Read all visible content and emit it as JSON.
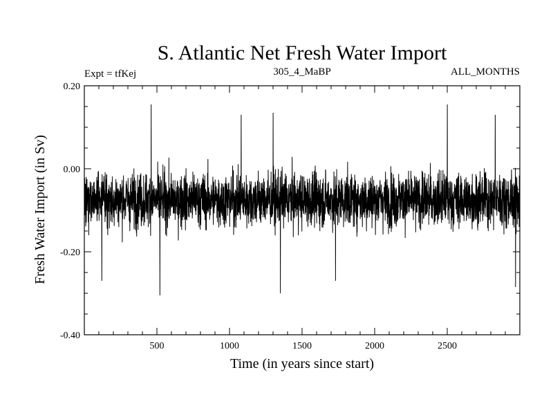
{
  "chart_data": {
    "type": "line",
    "title": "S. Atlantic Net Fresh Water Import",
    "subtitle_left": "Expt = tfKej",
    "subtitle_center": "305_4_MaBP",
    "subtitle_right": "ALL_MONTHS",
    "xlabel": "Time (in years since start)",
    "ylabel": "Fresh Water Import (in Sv)",
    "xlim": [
      0,
      3000
    ],
    "ylim": [
      -0.4,
      0.2
    ],
    "x_ticks": [
      500,
      1000,
      1500,
      2000,
      2500
    ],
    "x_tick_labels": [
      "500",
      "1000",
      "1500",
      "2000",
      "2500"
    ],
    "y_ticks": [
      0.2,
      0.0,
      -0.2,
      -0.4
    ],
    "y_tick_labels": [
      "0.20",
      "0.00",
      "-0.20",
      "-0.40"
    ],
    "grid": false,
    "series": [
      {
        "color": "#000000",
        "mean": -0.075,
        "typical_range": [
          -0.18,
          0.03
        ],
        "extremes": [
          {
            "x": 460,
            "y": 0.155
          },
          {
            "x": 2500,
            "y": 0.155
          },
          {
            "x": 1080,
            "y": 0.13
          },
          {
            "x": 1300,
            "y": 0.135
          },
          {
            "x": 2830,
            "y": 0.13
          },
          {
            "x": 520,
            "y": -0.305
          },
          {
            "x": 1350,
            "y": -0.3
          },
          {
            "x": 1730,
            "y": -0.27
          },
          {
            "x": 120,
            "y": -0.27
          },
          {
            "x": 2970,
            "y": -0.285
          }
        ]
      }
    ]
  }
}
